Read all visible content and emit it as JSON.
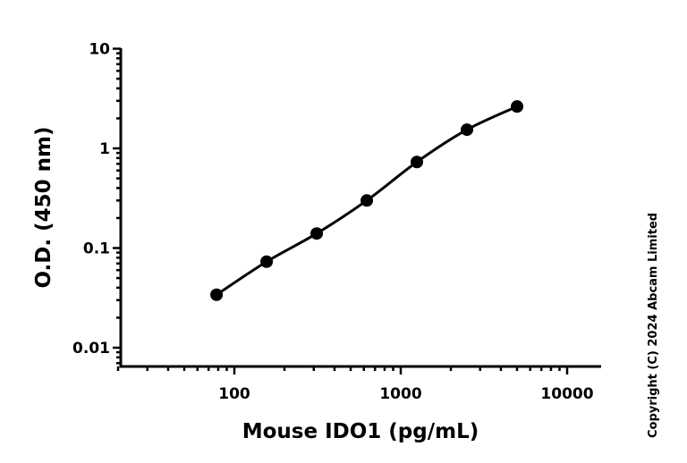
{
  "chart_data": {
    "type": "scatter",
    "title": "",
    "xlabel": "Mouse IDO1 (pg/mL)",
    "ylabel": "O.D. (450 nm)",
    "xscale": "log",
    "yscale": "log",
    "xlim": [
      20,
      16000
    ],
    "ylim": [
      0.0065,
      10
    ],
    "xticks": [
      100,
      1000,
      10000
    ],
    "xtick_labels": [
      "100",
      "1000",
      "10000"
    ],
    "yticks": [
      0.01,
      0.1,
      1,
      10
    ],
    "ytick_labels": [
      "0.01",
      "0.1",
      "1",
      "10"
    ],
    "grid": false,
    "legend": "none",
    "series": [
      {
        "x": [
          78.125,
          156.25,
          312.5,
          625,
          1250,
          2500,
          5000
        ],
        "y": [
          0.034,
          0.073,
          0.14,
          0.3,
          0.73,
          1.54,
          2.63
        ],
        "marker": "filled-circle",
        "fit_line": true,
        "color": "#000000"
      }
    ]
  },
  "copyright": "Copyright (C) 2024 Abcam Limited"
}
